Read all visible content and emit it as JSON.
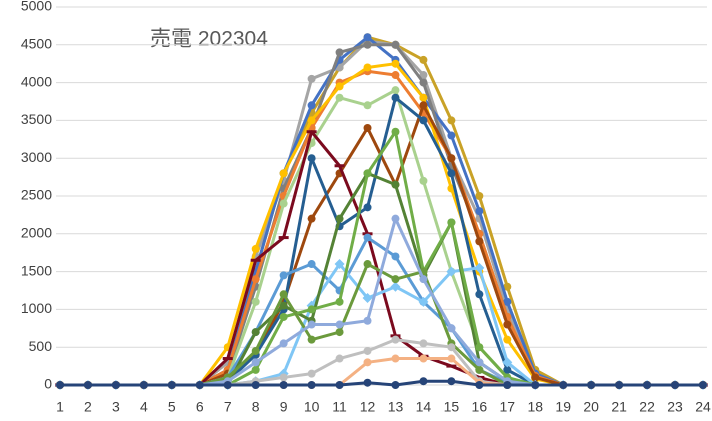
{
  "chart_data": {
    "type": "line",
    "title": "売電 202304",
    "x": [
      1,
      2,
      3,
      4,
      5,
      6,
      7,
      8,
      9,
      10,
      11,
      12,
      13,
      14,
      15,
      16,
      17,
      18,
      19,
      20,
      21,
      22,
      23,
      24
    ],
    "xlim": [
      1,
      24
    ],
    "xticks": [
      1,
      2,
      3,
      4,
      5,
      6,
      7,
      8,
      9,
      10,
      11,
      12,
      13,
      14,
      15,
      16,
      17,
      18,
      19,
      20,
      21,
      22,
      23,
      24
    ],
    "ylim": [
      0,
      5000
    ],
    "yticks": [
      0,
      500,
      1000,
      1500,
      2000,
      2500,
      3000,
      3500,
      4000,
      4500,
      5000
    ],
    "grid": true,
    "series": [
      {
        "color": "#c9a227",
        "values": [
          0,
          0,
          0,
          0,
          0,
          0,
          300,
          1500,
          2800,
          3600,
          4200,
          4600,
          4500,
          4300,
          3500,
          2500,
          1300,
          200,
          0,
          0,
          0,
          0,
          0,
          0
        ]
      },
      {
        "color": "#a5a5a5",
        "values": [
          0,
          0,
          0,
          0,
          0,
          0,
          300,
          1700,
          2700,
          4050,
          4200,
          4550,
          4500,
          4100,
          3000,
          2200,
          1000,
          150,
          0,
          0,
          0,
          0,
          0,
          0
        ]
      },
      {
        "color": "#4472c4",
        "values": [
          0,
          0,
          0,
          0,
          0,
          0,
          200,
          1500,
          2800,
          3700,
          4300,
          4600,
          4300,
          3800,
          3300,
          2300,
          1100,
          150,
          0,
          0,
          0,
          0,
          0,
          0
        ]
      },
      {
        "color": "#7f7f7f",
        "values": [
          0,
          0,
          0,
          0,
          0,
          0,
          150,
          1300,
          2600,
          3400,
          4400,
          4500,
          4500,
          4000,
          2900,
          2000,
          900,
          100,
          0,
          0,
          0,
          0,
          0,
          0
        ]
      },
      {
        "color": "#ed7d31",
        "values": [
          0,
          0,
          0,
          0,
          0,
          0,
          200,
          1400,
          2500,
          3400,
          4000,
          4150,
          4100,
          3600,
          3000,
          2000,
          900,
          120,
          0,
          0,
          0,
          0,
          0,
          0
        ]
      },
      {
        "color": "#ffc000",
        "values": [
          0,
          0,
          0,
          0,
          0,
          0,
          500,
          1800,
          2800,
          3500,
          3950,
          4200,
          4250,
          3800,
          2600,
          1500,
          600,
          80,
          0,
          0,
          0,
          0,
          0,
          0
        ]
      },
      {
        "color": "#9e480e",
        "values": [
          0,
          0,
          0,
          0,
          0,
          0,
          150,
          400,
          1100,
          2200,
          2800,
          3400,
          2650,
          3700,
          3000,
          1900,
          800,
          100,
          0,
          0,
          0,
          0,
          0,
          0
        ]
      },
      {
        "color": "#a9d18e",
        "values": [
          0,
          0,
          0,
          0,
          0,
          0,
          100,
          1100,
          2400,
          3200,
          3800,
          3700,
          3900,
          2700,
          1500,
          500,
          100,
          0,
          0,
          0,
          0,
          0,
          0,
          0
        ]
      },
      {
        "color": "#7b0a1e",
        "marker": "dash",
        "values": [
          0,
          0,
          0,
          0,
          0,
          0,
          350,
          1650,
          1950,
          3350,
          2900,
          2000,
          650,
          380,
          250,
          100,
          0,
          0,
          0,
          0,
          0,
          0,
          0,
          0
        ]
      },
      {
        "color": "#255e91",
        "values": [
          0,
          0,
          0,
          0,
          0,
          0,
          50,
          400,
          1000,
          3000,
          2100,
          2350,
          3800,
          3500,
          2800,
          1200,
          200,
          0,
          0,
          0,
          0,
          0,
          0,
          0
        ]
      },
      {
        "color": "#5b9bd5",
        "values": [
          0,
          0,
          0,
          0,
          0,
          0,
          100,
          700,
          1450,
          1600,
          1250,
          1950,
          1700,
          1100,
          750,
          200,
          30,
          0,
          0,
          0,
          0,
          0,
          0,
          0
        ]
      },
      {
        "color": "#7fc6f5",
        "marker": "diamond",
        "values": [
          0,
          0,
          0,
          0,
          0,
          0,
          0,
          50,
          150,
          1050,
          1600,
          1150,
          1300,
          1100,
          1500,
          1550,
          300,
          0,
          0,
          0,
          0,
          0,
          0,
          0
        ]
      },
      {
        "color": "#548235",
        "values": [
          0,
          0,
          0,
          0,
          0,
          0,
          0,
          700,
          1050,
          850,
          2200,
          2800,
          2650,
          1450,
          2150,
          300,
          50,
          0,
          0,
          0,
          0,
          0,
          0,
          0
        ]
      },
      {
        "color": "#70ad47",
        "values": [
          0,
          0,
          0,
          0,
          0,
          0,
          0,
          200,
          900,
          1000,
          1100,
          2800,
          3350,
          1500,
          2150,
          500,
          100,
          0,
          0,
          0,
          0,
          0,
          0,
          0
        ]
      },
      {
        "color": "#6b9a3c",
        "values": [
          0,
          0,
          0,
          0,
          0,
          0,
          100,
          450,
          1200,
          600,
          700,
          1600,
          1400,
          1500,
          550,
          200,
          0,
          0,
          0,
          0,
          0,
          0,
          0,
          0
        ]
      },
      {
        "color": "#8faadc",
        "values": [
          0,
          0,
          0,
          0,
          0,
          0,
          50,
          300,
          550,
          800,
          800,
          850,
          2200,
          1400,
          750,
          300,
          50,
          0,
          0,
          0,
          0,
          0,
          0,
          0
        ]
      },
      {
        "color": "#bfbfbf",
        "values": [
          0,
          0,
          0,
          0,
          0,
          0,
          0,
          50,
          100,
          150,
          350,
          450,
          600,
          550,
          500,
          50,
          0,
          0,
          0,
          0,
          0,
          0,
          0,
          0
        ]
      },
      {
        "color": "#f4b183",
        "values": [
          0,
          0,
          0,
          0,
          0,
          0,
          0,
          0,
          0,
          0,
          0,
          300,
          350,
          350,
          350,
          30,
          0,
          0,
          0,
          0,
          0,
          0,
          0,
          0
        ]
      },
      {
        "color": "#264478",
        "values": [
          0,
          0,
          0,
          0,
          0,
          0,
          0,
          0,
          0,
          0,
          0,
          30,
          0,
          50,
          50,
          0,
          0,
          0,
          0,
          0,
          0,
          0,
          0,
          0
        ]
      }
    ]
  }
}
